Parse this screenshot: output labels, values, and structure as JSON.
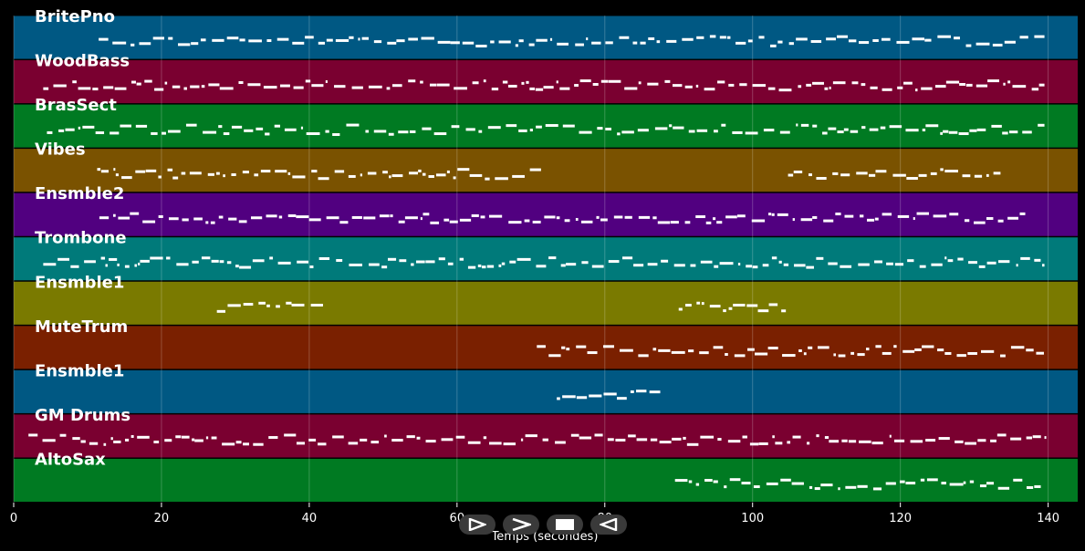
{
  "chart_data": {
    "type": "piano-roll",
    "xlabel": "Temps (secondes)",
    "xlim": [
      0,
      144
    ],
    "xticks": [
      "0",
      "20",
      "40",
      "60",
      "80",
      "100",
      "120",
      "140"
    ],
    "tick_values": [
      0,
      20,
      40,
      60,
      80,
      100,
      120,
      140
    ],
    "grid": true,
    "tracks": [
      {
        "name": "BritePno",
        "color": "#005883",
        "segments": [
          [
            11.5,
            139.5
          ]
        ]
      },
      {
        "name": "WoodBass",
        "color": "#7a0030",
        "segments": [
          [
            4,
            139.5
          ]
        ]
      },
      {
        "name": "BrasSect",
        "color": "#007a22",
        "segments": [
          [
            4.5,
            139.5
          ]
        ]
      },
      {
        "name": "Vibes",
        "color": "#7a5200",
        "segments": [
          [
            11.3,
            71.8
          ],
          [
            104.8,
            133.8
          ]
        ]
      },
      {
        "name": "Ensmble2",
        "color": "#510080",
        "segments": [
          [
            11.6,
            136.9
          ]
        ]
      },
      {
        "name": "Trombone",
        "color": "#007a7a",
        "segments": [
          [
            4,
            139.5
          ]
        ]
      },
      {
        "name": "Ensmble1",
        "color": "#7a7a00",
        "segments": [
          [
            27.5,
            42.2
          ],
          [
            90,
            104.5
          ]
        ]
      },
      {
        "name": "MuteTrum",
        "color": "#7a2000",
        "segments": [
          [
            70.8,
            139.5
          ]
        ]
      },
      {
        "name": "Ensmble1",
        "color": "#005883",
        "segments": [
          [
            73.5,
            87.5
          ]
        ]
      },
      {
        "name": "GM Drums",
        "color": "#7a0030",
        "segments": [
          [
            2,
            139.5
          ]
        ]
      },
      {
        "name": "AltoSax",
        "color": "#007a22",
        "segments": [
          [
            89.5,
            139
          ]
        ]
      }
    ]
  },
  "controls": {
    "play": "play-button",
    "fast_forward": "fast-forward-button",
    "stop": "stop-button",
    "rewind": "rewind-button"
  }
}
